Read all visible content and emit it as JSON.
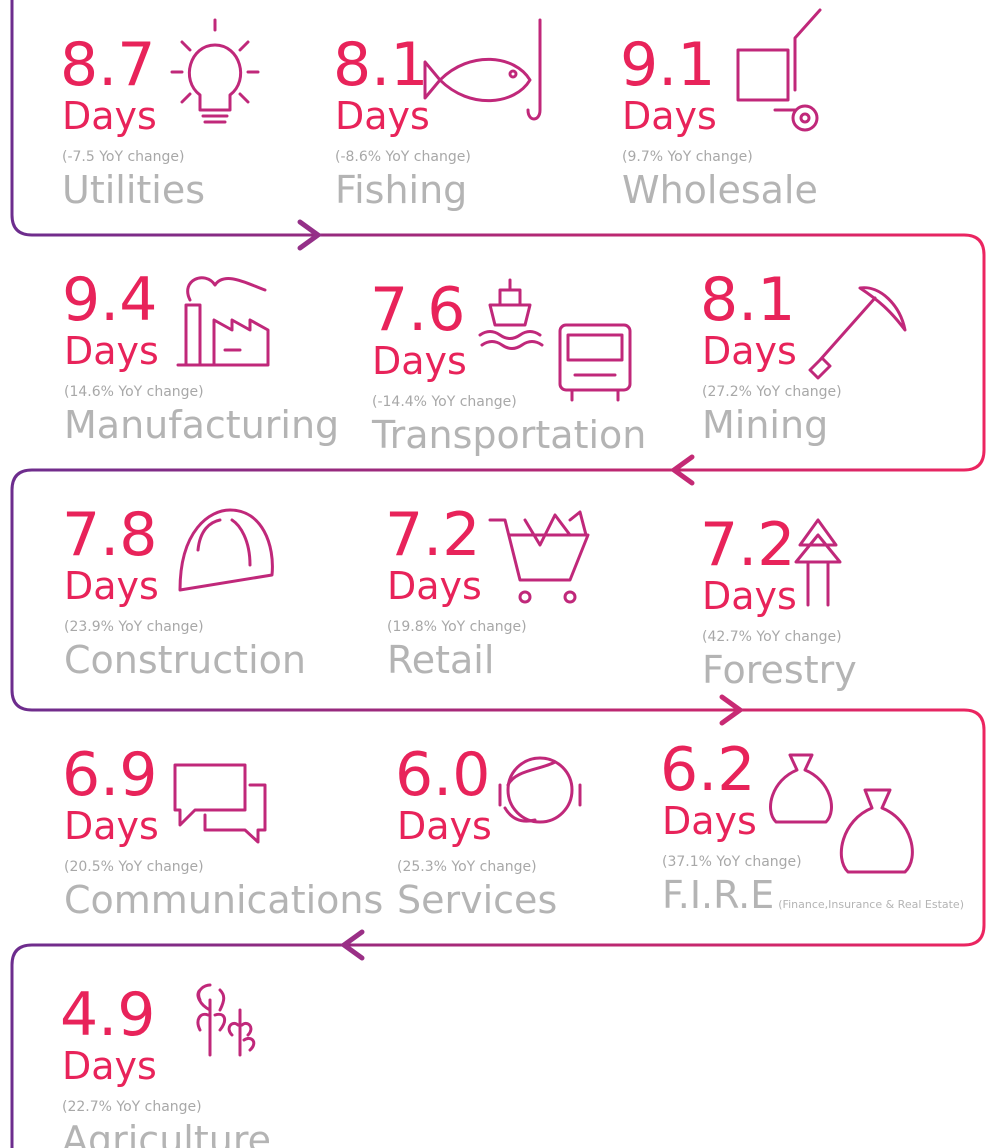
{
  "items": [
    {
      "value": "8.7",
      "unit": "Days",
      "change": "(-7.5 YoY change)",
      "label": "Utilities"
    },
    {
      "value": "8.1",
      "unit": "Days",
      "change": "(-8.6% YoY change)",
      "label": "Fishing"
    },
    {
      "value": "9.1",
      "unit": "Days",
      "change": "(9.7% YoY change)",
      "label": "Wholesale"
    },
    {
      "value": "9.4",
      "unit": "Days",
      "change": "(14.6% YoY change)",
      "label": "Manufacturing"
    },
    {
      "value": "7.6",
      "unit": "Days",
      "change": "(-14.4% YoY change)",
      "label": "Transportation"
    },
    {
      "value": "8.1",
      "unit": "Days",
      "change": "(27.2% YoY change)",
      "label": "Mining"
    },
    {
      "value": "7.8",
      "unit": "Days",
      "change": "(23.9% YoY change)",
      "label": "Construction"
    },
    {
      "value": "7.2",
      "unit": "Days",
      "change": "(19.8% YoY change)",
      "label": "Retail"
    },
    {
      "value": "7.2",
      "unit": "Days",
      "change": "(42.7% YoY change)",
      "label": "Forestry"
    },
    {
      "value": "6.9",
      "unit": "Days",
      "change": "(20.5% YoY change)",
      "label": "Communications"
    },
    {
      "value": "6.0",
      "unit": "Days",
      "change": "(25.3% YoY change)",
      "label": "Services"
    },
    {
      "value": "6.2",
      "unit": "Days",
      "change": "(37.1% YoY change)",
      "label": "F.I.R.E",
      "label_note": "(Finance,Insurance & Real Estate)"
    },
    {
      "value": "4.9",
      "unit": "Days",
      "change": "(22.7% YoY change)",
      "label": "Agriculture"
    }
  ]
}
